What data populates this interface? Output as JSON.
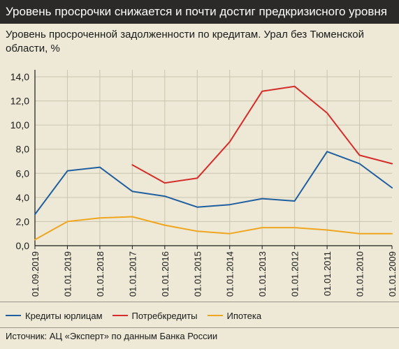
{
  "header": {
    "title": "Уровень просрочки снижается и почти достиг предкризисного уровня",
    "subtitle": "Уровень просроченной задолженности по кредитам. Урал без Тюменской области, %"
  },
  "source": "Источник: АЦ «Эксперт» по данным Банка России",
  "chart_data": {
    "type": "line",
    "title": "",
    "xlabel": "",
    "ylabel": "",
    "ylim": [
      0,
      14
    ],
    "yticks": [
      "0,0",
      "2,0",
      "4,0",
      "6,0",
      "8,0",
      "10,0",
      "12,0",
      "14,0"
    ],
    "grid": true,
    "legend_position": "bottom",
    "categories": [
      "01.09.2019",
      "01.01.2019",
      "01.01.2018",
      "01.01.2017",
      "01.01.2016",
      "01.01.2015",
      "01.01.2014",
      "01.01.2013",
      "01.01.2012",
      "01.01.2011",
      "01.01.2010",
      "01.01.2009"
    ],
    "series": [
      {
        "name": "Кредиты юрлицам",
        "color": "#1f5fa0",
        "values": [
          2.6,
          6.2,
          6.5,
          4.5,
          4.1,
          3.2,
          3.4,
          3.9,
          3.7,
          7.8,
          6.8,
          4.8
        ]
      },
      {
        "name": "Потребкредиты",
        "color": "#d42d2a",
        "values": [
          null,
          null,
          null,
          6.7,
          5.2,
          5.6,
          8.6,
          12.8,
          13.2,
          11.0,
          7.5,
          6.8
        ]
      },
      {
        "name": "Ипотека",
        "color": "#f0a51e",
        "values": [
          0.5,
          2.0,
          2.3,
          2.4,
          1.7,
          1.2,
          1.0,
          1.5,
          1.5,
          1.3,
          1.0,
          1.0
        ]
      }
    ]
  }
}
